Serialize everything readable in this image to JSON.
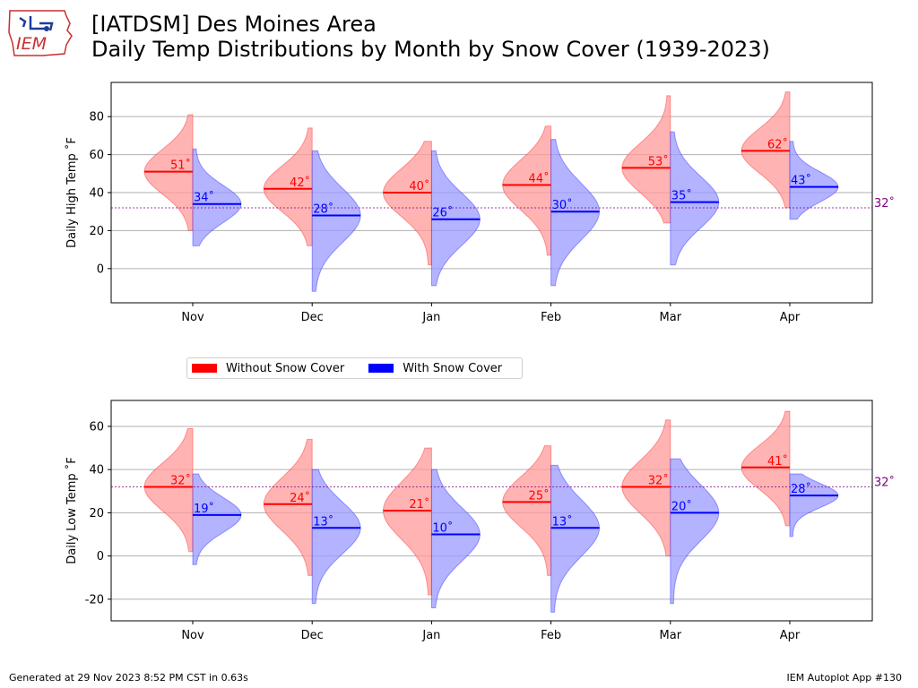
{
  "header": {
    "logo_text": "IEM",
    "title_line1": "[IATDSM] Des Moines Area",
    "title_line2": "Daily Temp Distributions by Month by Snow Cover (1939-2023)"
  },
  "legend": [
    {
      "label": "Without Snow Cover",
      "color": "#ff0000"
    },
    {
      "label": "With Snow Cover",
      "color": "#0000ff"
    }
  ],
  "footer": {
    "left": "Generated at 29 Nov 2023 8:52 PM CST in 0.63s",
    "right": "IEM Autoplot App #130"
  },
  "colors": {
    "without_fill": "#ff9a9a",
    "with_fill": "#9a9aff",
    "without_line": "#ff0000",
    "with_line": "#0000ff",
    "threshold": "#800080",
    "grid": "#b0b0b0"
  },
  "chart_data": [
    {
      "type": "violin",
      "ylabel": "Daily High Temp $^\\circ$F",
      "ylabel_display": "Daily High Temp ˚F",
      "categories": [
        "Nov",
        "Dec",
        "Jan",
        "Feb",
        "Mar",
        "Apr"
      ],
      "yticks": [
        0,
        20,
        40,
        60,
        80
      ],
      "ylim": [
        -18,
        98
      ],
      "threshold": 32,
      "threshold_label": "32˚",
      "grid": true,
      "series": [
        {
          "name": "Without Snow Cover",
          "means": [
            51,
            42,
            40,
            44,
            53,
            62
          ],
          "labels": [
            "51˚",
            "42˚",
            "40˚",
            "44˚",
            "53˚",
            "62˚"
          ],
          "ranges": [
            [
              20,
              81
            ],
            [
              12,
              74
            ],
            [
              2,
              67
            ],
            [
              7,
              75
            ],
            [
              24,
              91
            ],
            [
              32,
              93
            ]
          ]
        },
        {
          "name": "With Snow Cover",
          "means": [
            34,
            28,
            26,
            30,
            35,
            43
          ],
          "labels": [
            "34˚",
            "28˚",
            "26˚",
            "30˚",
            "35˚",
            "43˚"
          ],
          "ranges": [
            [
              12,
              63
            ],
            [
              -12,
              62
            ],
            [
              -9,
              62
            ],
            [
              -9,
              68
            ],
            [
              2,
              72
            ],
            [
              26,
              67
            ]
          ]
        }
      ]
    },
    {
      "type": "violin",
      "ylabel": "Daily Low Temp $^\\circ$F",
      "ylabel_display": "Daily Low Temp ˚F",
      "categories": [
        "Nov",
        "Dec",
        "Jan",
        "Feb",
        "Mar",
        "Apr"
      ],
      "yticks": [
        -20,
        0,
        20,
        40,
        60
      ],
      "ylim": [
        -30,
        72
      ],
      "threshold": 32,
      "threshold_label": "32˚",
      "grid": true,
      "series": [
        {
          "name": "Without Snow Cover",
          "means": [
            32,
            24,
            21,
            25,
            32,
            41
          ],
          "labels": [
            "32˚",
            "24˚",
            "21˚",
            "25˚",
            "32˚",
            "41˚"
          ],
          "ranges": [
            [
              2,
              59
            ],
            [
              -9,
              54
            ],
            [
              -18,
              50
            ],
            [
              -9,
              51
            ],
            [
              0,
              63
            ],
            [
              14,
              67
            ]
          ]
        },
        {
          "name": "With Snow Cover",
          "means": [
            19,
            13,
            10,
            13,
            20,
            28
          ],
          "labels": [
            "19˚",
            "13˚",
            "10˚",
            "13˚",
            "20˚",
            "28˚"
          ],
          "ranges": [
            [
              -4,
              38
            ],
            [
              -22,
              40
            ],
            [
              -24,
              40
            ],
            [
              -26,
              42
            ],
            [
              -22,
              45
            ],
            [
              9,
              38
            ]
          ]
        }
      ]
    }
  ]
}
